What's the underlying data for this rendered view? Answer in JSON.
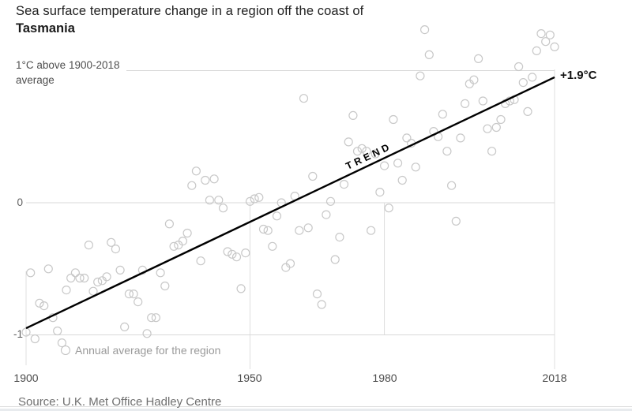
{
  "header": {
    "title_line1": "Sea surface temperature change in a region off the coast of",
    "title_line2": "Tasmania"
  },
  "axis": {
    "y_top_label_line1": "1°C above 1900-2018",
    "y_top_label_line2": "average",
    "y_tick_zero": "0",
    "y_tick_neg1": "-1",
    "x_tick_labels": [
      "1900",
      "1950",
      "1980",
      "2018"
    ]
  },
  "annotations": {
    "trend_label": "TREND",
    "end_value_label": "+1.9°C"
  },
  "legend": {
    "label": "Annual average for the region"
  },
  "footer": {
    "source": "Source: U.K. Met Office Hadley Centre"
  },
  "colors": {
    "title": "#1a1a1a",
    "grid": "#d8d8d8",
    "guide": "#dfdfdf",
    "point_stroke": "#c8c8c8",
    "trend": "#000000",
    "tick_text": "#4c4c4c",
    "legend_text": "#9a9a9a",
    "source_text": "#6f6f6f"
  },
  "chart_data": {
    "type": "scatter",
    "title": "Sea surface temperature change in a region off the coast of Tasmania",
    "ylabel": "1°C above 1900-2018 average",
    "start_year": 1900,
    "end_year": 2018,
    "x_ticks": [
      1900,
      1950,
      1980,
      2018
    ],
    "y_ticks": [
      -1,
      0,
      1
    ],
    "ylim": [
      -1.35,
      1.45
    ],
    "grid": "partial",
    "legend_position": "bottom-left",
    "trend": {
      "start_year": 1900,
      "end_year": 2018,
      "start_value": -0.95,
      "end_value": 0.95,
      "total_change_label": "+1.9°C"
    },
    "series_name": "Annual average for the region",
    "values": [
      -0.98,
      -0.53,
      -1.03,
      -0.76,
      -0.78,
      -0.5,
      -0.87,
      -0.97,
      -1.06,
      -0.66,
      -0.57,
      -0.53,
      -0.57,
      -0.57,
      -0.32,
      -0.67,
      -0.6,
      -0.59,
      -0.56,
      -0.3,
      -0.35,
      -0.51,
      -0.94,
      -0.69,
      -0.69,
      -0.75,
      -0.51,
      -0.99,
      -0.87,
      -0.87,
      -0.53,
      -0.63,
      -0.16,
      -0.33,
      -0.32,
      -0.29,
      -0.23,
      0.13,
      0.24,
      -0.44,
      0.17,
      0.02,
      0.18,
      0.02,
      -0.04,
      -0.37,
      -0.39,
      -0.41,
      -0.65,
      -0.38,
      0.01,
      0.03,
      0.04,
      -0.2,
      -0.21,
      -0.33,
      -0.1,
      0.0,
      -0.49,
      -0.46,
      0.05,
      -0.21,
      0.79,
      -0.19,
      0.2,
      -0.69,
      -0.77,
      -0.09,
      0.01,
      -0.43,
      -0.26,
      0.14,
      0.46,
      0.66,
      0.39,
      0.41,
      0.39,
      -0.21,
      0.37,
      0.08,
      0.28,
      -0.04,
      0.63,
      0.3,
      0.17,
      0.49,
      0.45,
      0.27,
      0.96,
      1.31,
      1.12,
      0.54,
      0.5,
      0.67,
      0.39,
      0.13,
      -0.14,
      0.49,
      0.75,
      0.9,
      0.93,
      1.09,
      0.77,
      0.56,
      0.39,
      0.57,
      0.63,
      0.75,
      0.77,
      0.78,
      1.03,
      0.91,
      0.69,
      0.95,
      1.15,
      1.28,
      1.22,
      1.27,
      1.18
    ]
  }
}
